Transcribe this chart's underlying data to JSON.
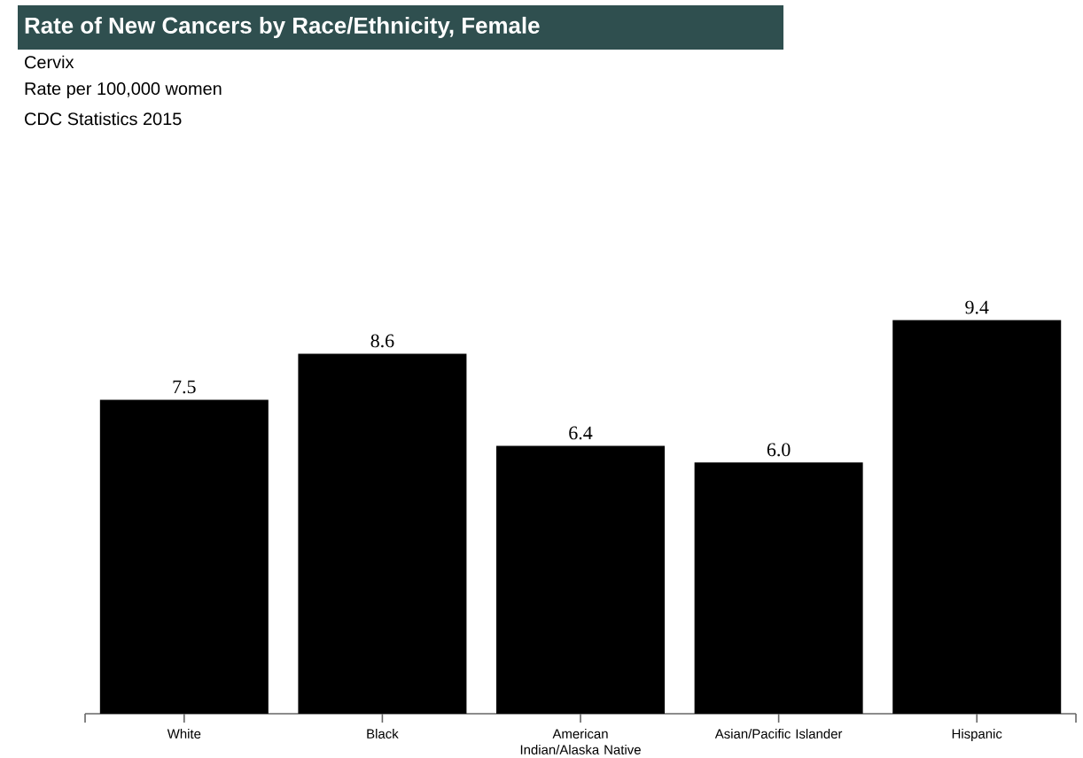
{
  "chart_data": {
    "type": "bar",
    "title": "Rate of New Cancers by Race/Ethnicity, Female",
    "subtitle": "Cervix",
    "annotations": [
      "Rate per 100,000 women",
      "CDC Statistics 2015"
    ],
    "categories": [
      "White",
      "Black",
      "American Indian/Alaska Native",
      "Asian/Pacific Islander",
      "Hispanic"
    ],
    "values": [
      7.5,
      8.6,
      6.4,
      6.0,
      9.4
    ],
    "value_labels": [
      "7.5",
      "8.6",
      "6.4",
      "6.0",
      "9.4"
    ],
    "color": "#000000"
  }
}
